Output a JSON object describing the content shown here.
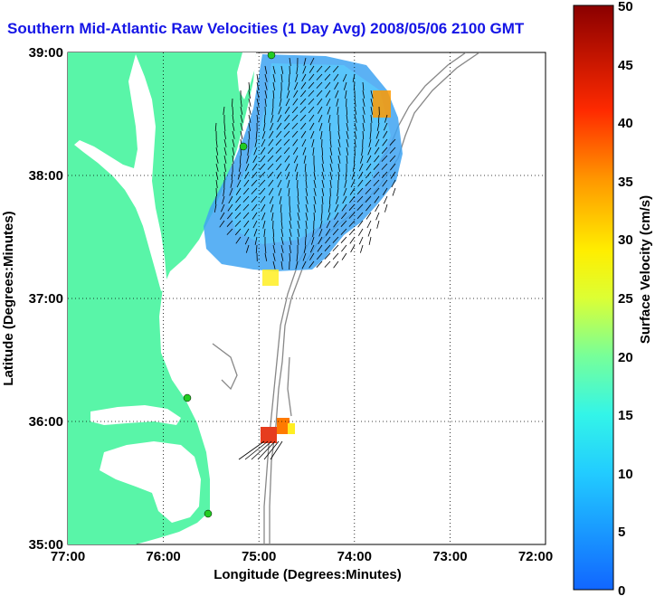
{
  "title": "Southern Mid-Atlantic Raw Velocities (1 Day Avg) 2008/05/06 2100 GMT",
  "x_axis": {
    "label": "Longitude (Degrees:Minutes)",
    "ticks": [
      "77:00",
      "76:00",
      "75:00",
      "74:00",
      "73:00",
      "72:00"
    ]
  },
  "y_axis": {
    "label": "Latitude (Degrees:Minutes)",
    "ticks": [
      "39:00",
      "38:00",
      "37:00",
      "36:00",
      "35:00"
    ]
  },
  "colorbar": {
    "label": "Surface Velocity (cm/s)",
    "min": 0,
    "max": 50,
    "ticks": [
      "50",
      "45",
      "40",
      "35",
      "30",
      "25",
      "20",
      "15",
      "10",
      "5",
      "0"
    ]
  },
  "colors": {
    "land": "#59f5a8",
    "ocean": "#ffffff",
    "title": "#1515e6",
    "station": "#22cc22",
    "current_field": "#3ea3f2",
    "hotspot": "#e63c1e"
  },
  "map_extent": {
    "lon_range": [
      -77,
      -72
    ],
    "lat_range": [
      35,
      39
    ],
    "grid": "dotted"
  }
}
